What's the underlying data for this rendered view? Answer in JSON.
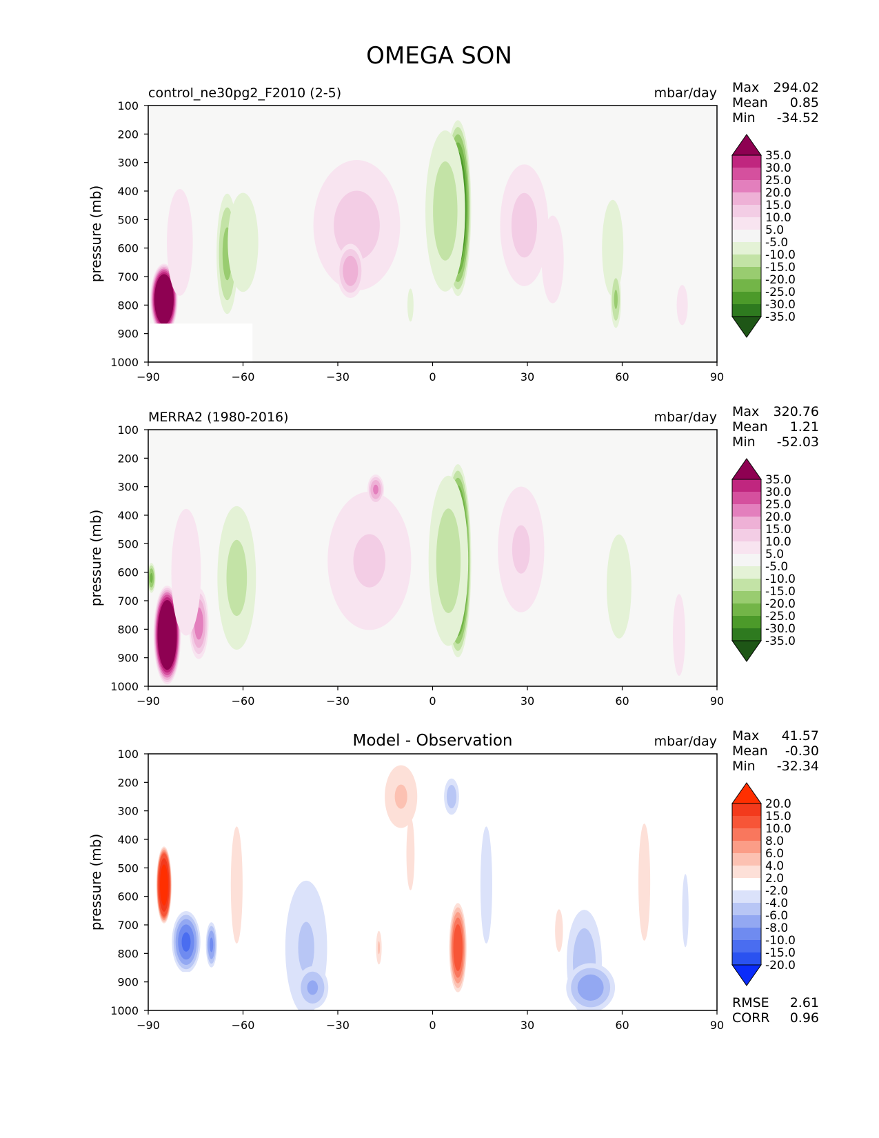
{
  "figure_title": "OMEGA SON",
  "colors": {
    "background": "#f7f7f6",
    "diff_background": "#ffffff",
    "axis": "#000000",
    "field_levels": [
      "#1e5616",
      "#2e7a1f",
      "#4c9a2a",
      "#73b548",
      "#99cc70",
      "#c3e3a6",
      "#e4f2d6",
      "#f5f5f5",
      "#f8e4f0",
      "#f3cde5",
      "#eeb1d6",
      "#e37fbd",
      "#d5509e",
      "#c0267f",
      "#8e0152"
    ],
    "diff_levels": [
      "#0a2cfa",
      "#2a52f0",
      "#4a6df0",
      "#6f8bf0",
      "#93a8f2",
      "#b8c6f5",
      "#dbe2fa",
      "#ffffff",
      "#fde0d8",
      "#fcc1b2",
      "#fb9d87",
      "#f9775d",
      "#f75537",
      "#f33a1c",
      "#ff2f00"
    ]
  },
  "chart_data": [
    {
      "type": "heatmap",
      "id": "model",
      "title_left": "control_ne30pg2_F2010 (2-5)",
      "title_center": "",
      "units": "mbar/day",
      "xlabel": "",
      "ylabel": "pressure (mb)",
      "xlim": [
        -90,
        90
      ],
      "ylim": [
        1000,
        100
      ],
      "xticks": [
        "−90",
        "−60",
        "−30",
        "0",
        "30",
        "60",
        "90"
      ],
      "xtick_values": [
        -90,
        -60,
        -30,
        0,
        30,
        60,
        90
      ],
      "yticks": [
        "100",
        "200",
        "300",
        "400",
        "500",
        "600",
        "700",
        "800",
        "900",
        "1000"
      ],
      "ytick_values": [
        100,
        200,
        300,
        400,
        500,
        600,
        700,
        800,
        900,
        1000
      ],
      "stats": [
        {
          "label": "Max",
          "value": "294.02"
        },
        {
          "label": "Mean",
          "value": "0.85"
        },
        {
          "label": "Min",
          "value": "-34.52"
        }
      ],
      "colorbar_labels": [
        "35.0",
        "30.0",
        "25.0",
        "20.0",
        "15.0",
        "10.0",
        "5.0",
        "-5.0",
        "-10.0",
        "-15.0",
        "-20.0",
        "-25.0",
        "-30.0",
        "-35.0"
      ],
      "colorbar_scheme": "field",
      "masked_region": {
        "lat": [
          -90,
          -57
        ],
        "p": [
          865,
          1000
        ]
      },
      "features": [
        {
          "lat": 8,
          "p": 460,
          "hw": 4.5,
          "hp": 330,
          "value": -36
        },
        {
          "lat": 4,
          "p": 470,
          "hw": 8,
          "hp": 360,
          "value": -12
        },
        {
          "lat": -24,
          "p": 520,
          "hw": 18,
          "hp": 300,
          "value": 11
        },
        {
          "lat": -26,
          "p": 680,
          "hw": 5,
          "hp": 110,
          "value": 18
        },
        {
          "lat": 29,
          "p": 520,
          "hw": 10,
          "hp": 280,
          "value": 11
        },
        {
          "lat": 38,
          "p": 640,
          "hw": 5,
          "hp": 220,
          "value": 9
        },
        {
          "lat": -65,
          "p": 620,
          "hw": 4,
          "hp": 250,
          "value": -16
        },
        {
          "lat": -60,
          "p": 580,
          "hw": 10,
          "hp": 360,
          "value": -6
        },
        {
          "lat": 57,
          "p": 600,
          "hw": 7,
          "hp": 350,
          "value": -6
        },
        {
          "lat": 58,
          "p": 780,
          "hw": 2,
          "hp": 120,
          "value": -15
        },
        {
          "lat": -85,
          "p": 780,
          "hw": 4.5,
          "hp": 130,
          "value": 60
        },
        {
          "lat": -80,
          "p": 580,
          "hw": 7,
          "hp": 320,
          "value": 7
        },
        {
          "lat": 79,
          "p": 800,
          "hw": 3,
          "hp": 120,
          "value": 7
        },
        {
          "lat": -7,
          "p": 800,
          "hw": 2,
          "hp": 120,
          "value": -6
        }
      ]
    },
    {
      "type": "heatmap",
      "id": "observation",
      "title_left": "MERRA2 (1980-2016)",
      "title_center": "",
      "units": "mbar/day",
      "xlabel": "",
      "ylabel": "pressure (mb)",
      "xlim": [
        -90,
        90
      ],
      "ylim": [
        1000,
        100
      ],
      "xticks": [
        "−90",
        "−60",
        "−30",
        "0",
        "30",
        "60",
        "90"
      ],
      "xtick_values": [
        -90,
        -60,
        -30,
        0,
        30,
        60,
        90
      ],
      "yticks": [
        "100",
        "200",
        "300",
        "400",
        "500",
        "600",
        "700",
        "800",
        "900",
        "1000"
      ],
      "ytick_values": [
        100,
        200,
        300,
        400,
        500,
        600,
        700,
        800,
        900,
        1000
      ],
      "stats": [
        {
          "label": "Max",
          "value": "320.76"
        },
        {
          "label": "Mean",
          "value": "1.21"
        },
        {
          "label": "Min",
          "value": "-52.03"
        }
      ],
      "colorbar_labels": [
        "35.0",
        "30.0",
        "25.0",
        "20.0",
        "15.0",
        "10.0",
        "5.0",
        "-5.0",
        "-10.0",
        "-15.0",
        "-20.0",
        "-25.0",
        "-30.0",
        "-35.0"
      ],
      "colorbar_scheme": "field",
      "masked_region": null,
      "features": [
        {
          "lat": 8,
          "p": 560,
          "hw": 4.5,
          "hp": 360,
          "value": -40
        },
        {
          "lat": 5,
          "p": 560,
          "hw": 8,
          "hp": 380,
          "value": -12
        },
        {
          "lat": -20,
          "p": 560,
          "hw": 18,
          "hp": 330,
          "value": 10
        },
        {
          "lat": -18,
          "p": 310,
          "hw": 3,
          "hp": 60,
          "value": 20
        },
        {
          "lat": 28,
          "p": 520,
          "hw": 10,
          "hp": 300,
          "value": 10
        },
        {
          "lat": -62,
          "p": 620,
          "hw": 8,
          "hp": 330,
          "value": -11
        },
        {
          "lat": 59,
          "p": 650,
          "hw": 6,
          "hp": 280,
          "value": -8
        },
        {
          "lat": -84,
          "p": 820,
          "hw": 4.5,
          "hp": 180,
          "value": 60
        },
        {
          "lat": -74,
          "p": 780,
          "hw": 3.5,
          "hp": 140,
          "value": 22
        },
        {
          "lat": -78,
          "p": 600,
          "hw": 8,
          "hp": 380,
          "value": 7
        },
        {
          "lat": 78,
          "p": 820,
          "hw": 3,
          "hp": 220,
          "value": 8
        },
        {
          "lat": -89,
          "p": 620,
          "hw": 1.5,
          "hp": 60,
          "value": -20
        }
      ]
    },
    {
      "type": "heatmap",
      "id": "difference",
      "title_left": "",
      "title_center": "Model - Observation",
      "units": "mbar/day",
      "xlabel": "",
      "ylabel": "pressure (mb)",
      "xlim": [
        -90,
        90
      ],
      "ylim": [
        1000,
        100
      ],
      "xticks": [
        "−90",
        "−60",
        "−30",
        "0",
        "30",
        "60",
        "90"
      ],
      "xtick_values": [
        -90,
        -60,
        -30,
        0,
        30,
        60,
        90
      ],
      "yticks": [
        "100",
        "200",
        "300",
        "400",
        "500",
        "600",
        "700",
        "800",
        "900",
        "1000"
      ],
      "ytick_values": [
        100,
        200,
        300,
        400,
        500,
        600,
        700,
        800,
        900,
        1000
      ],
      "stats": [
        {
          "label": "Max",
          "value": "41.57"
        },
        {
          "label": "Mean",
          "value": "-0.30"
        },
        {
          "label": "Min",
          "value": "-32.34"
        }
      ],
      "colorbar_labels": [
        "20.0",
        "15.0",
        "10.0",
        "8.0",
        "6.0",
        "4.0",
        "2.0",
        "-2.0",
        "-4.0",
        "-6.0",
        "-8.0",
        "-10.0",
        "-15.0",
        "-20.0"
      ],
      "colorbar_scheme": "diff",
      "masked_region": {
        "lat": [
          -90,
          -57
        ],
        "p": [
          865,
          1000
        ]
      },
      "extra_stats": [
        {
          "label": "RMSE",
          "value": "2.61"
        },
        {
          "label": "CORR",
          "value": "0.96"
        }
      ],
      "features": [
        {
          "lat": 8,
          "p": 780,
          "hw": 3,
          "hp": 170,
          "value": 12
        },
        {
          "lat": 6,
          "p": 250,
          "hw": 3,
          "hp": 80,
          "value": -5
        },
        {
          "lat": -10,
          "p": 250,
          "hw": 7,
          "hp": 150,
          "value": 4
        },
        {
          "lat": -7,
          "p": 450,
          "hw": 2.5,
          "hp": 250,
          "value": 2.5
        },
        {
          "lat": -40,
          "p": 780,
          "hw": 9,
          "hp": 320,
          "value": -4
        },
        {
          "lat": -38,
          "p": 920,
          "hw": 6,
          "hp": 90,
          "value": -6
        },
        {
          "lat": 48,
          "p": 830,
          "hw": 7,
          "hp": 230,
          "value": -5
        },
        {
          "lat": 50,
          "p": 920,
          "hw": 9,
          "hp": 100,
          "value": -7
        },
        {
          "lat": 17,
          "p": 560,
          "hw": 3,
          "hp": 330,
          "value": -3
        },
        {
          "lat": -85,
          "p": 560,
          "hw": 2.5,
          "hp": 140,
          "value": 25
        },
        {
          "lat": -78,
          "p": 760,
          "hw": 5,
          "hp": 120,
          "value": -10
        },
        {
          "lat": -70,
          "p": 770,
          "hw": 2,
          "hp": 90,
          "value": -8
        },
        {
          "lat": -62,
          "p": 560,
          "hw": 3,
          "hp": 330,
          "value": 3
        },
        {
          "lat": 67,
          "p": 550,
          "hw": 3,
          "hp": 330,
          "value": 3
        },
        {
          "lat": 40,
          "p": 720,
          "hw": 2,
          "hp": 120,
          "value": 3
        },
        {
          "lat": 80,
          "p": 650,
          "hw": 2,
          "hp": 250,
          "value": -2.5
        },
        {
          "lat": -17,
          "p": 780,
          "hw": 1.2,
          "hp": 80,
          "value": 4
        }
      ]
    }
  ]
}
